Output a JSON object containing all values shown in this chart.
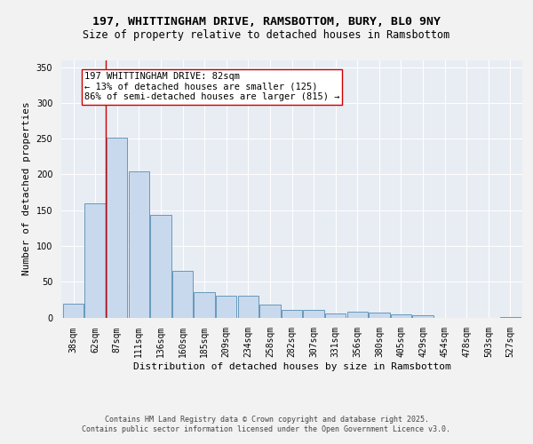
{
  "title_line1": "197, WHITTINGHAM DRIVE, RAMSBOTTOM, BURY, BL0 9NY",
  "title_line2": "Size of property relative to detached houses in Ramsbottom",
  "xlabel": "Distribution of detached houses by size in Ramsbottom",
  "ylabel": "Number of detached properties",
  "categories": [
    "38sqm",
    "62sqm",
    "87sqm",
    "111sqm",
    "136sqm",
    "160sqm",
    "185sqm",
    "209sqm",
    "234sqm",
    "258sqm",
    "282sqm",
    "307sqm",
    "331sqm",
    "356sqm",
    "380sqm",
    "405sqm",
    "429sqm",
    "454sqm",
    "478sqm",
    "503sqm",
    "527sqm"
  ],
  "values": [
    19,
    160,
    252,
    204,
    144,
    65,
    35,
    30,
    30,
    18,
    11,
    11,
    6,
    8,
    7,
    4,
    3,
    0,
    0,
    0,
    1
  ],
  "bar_color": "#c8d9ed",
  "bar_edge_color": "#6699bb",
  "vline_color": "#cc0000",
  "vline_x_index": 1,
  "annotation_text": "197 WHITTINGHAM DRIVE: 82sqm\n← 13% of detached houses are smaller (125)\n86% of semi-detached houses are larger (815) →",
  "annotation_box_facecolor": "#ffffff",
  "annotation_box_edgecolor": "#cc0000",
  "ylim": [
    0,
    360
  ],
  "yticks": [
    0,
    50,
    100,
    150,
    200,
    250,
    300,
    350
  ],
  "plot_bg_color": "#e8edf4",
  "fig_bg_color": "#f2f2f2",
  "footer_text": "Contains HM Land Registry data © Crown copyright and database right 2025.\nContains public sector information licensed under the Open Government Licence v3.0.",
  "title1_fontsize": 9.5,
  "title2_fontsize": 8.5,
  "ylabel_fontsize": 8,
  "xlabel_fontsize": 8,
  "tick_fontsize": 7,
  "annotation_fontsize": 7.5,
  "footer_fontsize": 6
}
